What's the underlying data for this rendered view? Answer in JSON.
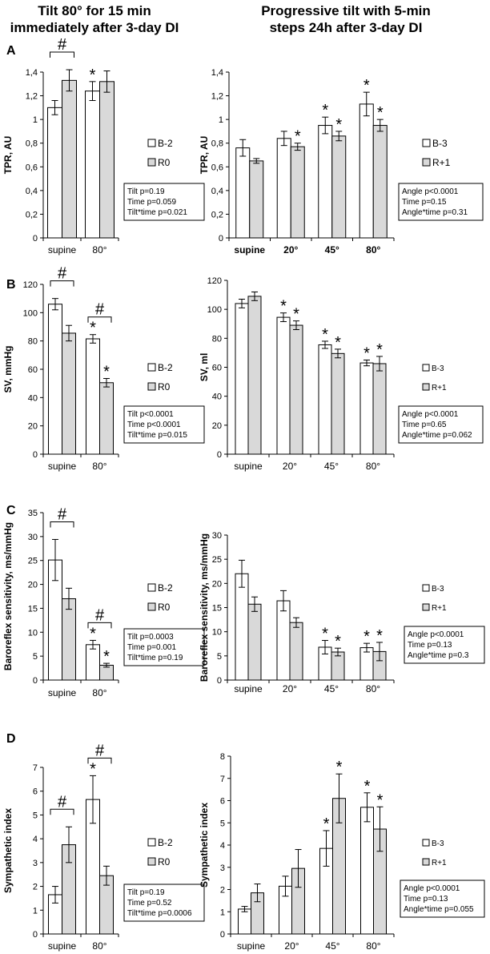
{
  "headers": {
    "left": [
      "Tilt 80° for 15 min",
      "immediately after 3-day DI"
    ],
    "right": [
      "Progressive tilt with 5-min",
      "steps 24h after 3-day DI"
    ]
  },
  "colors": {
    "series1": "#ffffff",
    "series2": "#d9d9d9",
    "stroke": "#000000"
  },
  "chart_data": [
    {
      "id": "A-left",
      "panel": "A",
      "type": "bar",
      "categories": [
        "supine",
        "80°"
      ],
      "ylabel": "TPR, AU",
      "ylim": [
        0,
        1.4
      ],
      "yticks": [
        "0",
        "0,2",
        "0,4",
        "0,6",
        "0,8",
        "1",
        "1,2",
        "1,4"
      ],
      "series": [
        {
          "name": "B-2",
          "values": [
            1.1,
            1.24
          ],
          "errors": [
            0.06,
            0.08
          ]
        },
        {
          "name": "R0",
          "values": [
            1.33,
            1.32
          ],
          "errors": [
            0.09,
            0.09
          ]
        }
      ],
      "stars": [
        {
          "cat": 1,
          "s": 0
        }
      ],
      "hashes": [
        {
          "cat": 0
        }
      ],
      "stats": [
        "Tilt p=0.19",
        "Time p=0.059",
        "Tilt*time p=0.021"
      ]
    },
    {
      "id": "A-right",
      "panel": "A",
      "type": "bar",
      "categories": [
        "supine",
        "20°",
        "45°",
        "80°"
      ],
      "ylabel": "TPR, AU",
      "ylim": [
        0,
        1.4
      ],
      "yticks": [
        "0",
        "0,2",
        "0,4",
        "0,6",
        "0,8",
        "1",
        "1,2",
        "1,4"
      ],
      "series": [
        {
          "name": "B-3",
          "values": [
            0.76,
            0.84,
            0.95,
            1.13
          ],
          "errors": [
            0.07,
            0.06,
            0.07,
            0.1
          ]
        },
        {
          "name": "R+1",
          "values": [
            0.65,
            0.77,
            0.86,
            0.95
          ],
          "errors": [
            0.02,
            0.03,
            0.04,
            0.05
          ]
        }
      ],
      "stars": [
        {
          "cat": 1,
          "s": 1
        },
        {
          "cat": 2,
          "s": 0
        },
        {
          "cat": 2,
          "s": 1
        },
        {
          "cat": 3,
          "s": 0
        },
        {
          "cat": 3,
          "s": 1
        }
      ],
      "hashes": [],
      "stats": [
        "Angle p<0.0001",
        "Time p=0.15",
        "Angle*time p=0.31"
      ]
    },
    {
      "id": "B-left",
      "panel": "B",
      "type": "bar",
      "categories": [
        "supine",
        "80°"
      ],
      "ylabel": "SV, mmHg",
      "ylim": [
        0,
        120
      ],
      "yticks": [
        "0",
        "20",
        "40",
        "60",
        "80",
        "100",
        "120"
      ],
      "series": [
        {
          "name": "B-2",
          "values": [
            106,
            81.5
          ],
          "errors": [
            4,
            3
          ]
        },
        {
          "name": "R0",
          "values": [
            85.5,
            50.5
          ],
          "errors": [
            5.5,
            3
          ]
        }
      ],
      "stars": [
        {
          "cat": 1,
          "s": 0
        },
        {
          "cat": 1,
          "s": 1
        }
      ],
      "hashes": [
        {
          "cat": 0
        },
        {
          "cat": 1
        }
      ],
      "stats": [
        "Tilt p<0.0001",
        "Time p<0.0001",
        "Tilt*time p=0.015"
      ]
    },
    {
      "id": "B-right",
      "panel": "B",
      "type": "bar",
      "categories": [
        "supine",
        "20°",
        "45°",
        "80°"
      ],
      "ylabel": "SV, ml",
      "ylim": [
        0,
        120
      ],
      "yticks": [
        "0",
        "20",
        "40",
        "60",
        "80",
        "100",
        "120"
      ],
      "series": [
        {
          "name": "B-3",
          "values": [
            104,
            94.5,
            75.5,
            63
          ],
          "errors": [
            3,
            3,
            2.5,
            2
          ]
        },
        {
          "name": "R+1",
          "values": [
            109,
            89,
            69.5,
            62.5
          ],
          "errors": [
            3,
            3,
            3,
            5
          ]
        }
      ],
      "stars": [
        {
          "cat": 1,
          "s": 0
        },
        {
          "cat": 1,
          "s": 1
        },
        {
          "cat": 2,
          "s": 0
        },
        {
          "cat": 2,
          "s": 1
        },
        {
          "cat": 3,
          "s": 0
        },
        {
          "cat": 3,
          "s": 1
        }
      ],
      "hashes": [],
      "stats": [
        "Angle p<0.0001",
        "Time p=0.65",
        "Angle*time p=0.062"
      ]
    },
    {
      "id": "C-left",
      "panel": "C",
      "type": "bar",
      "categories": [
        "supine",
        "80°"
      ],
      "ylabel": "Baroreflex sensitivity, ms/mmHg",
      "ylim": [
        0,
        35
      ],
      "yticks": [
        "0",
        "5",
        "10",
        "15",
        "20",
        "25",
        "30",
        "35"
      ],
      "series": [
        {
          "name": "B-2",
          "values": [
            25.1,
            7.4
          ],
          "errors": [
            4.3,
            0.9
          ]
        },
        {
          "name": "R0",
          "values": [
            17.0,
            3.1
          ],
          "errors": [
            2.2,
            0.4
          ]
        }
      ],
      "stars": [
        {
          "cat": 1,
          "s": 0
        },
        {
          "cat": 1,
          "s": 1
        }
      ],
      "hashes": [
        {
          "cat": 0
        },
        {
          "cat": 1
        }
      ],
      "stats": [
        "Tilt p=0.0003",
        "Time p=0.001",
        "Tilt*time p=0.19"
      ]
    },
    {
      "id": "C-right",
      "panel": "C",
      "type": "bar",
      "categories": [
        "supine",
        "20°",
        "45°",
        "80°"
      ],
      "ylabel": "Baroreflex sensitivity, ms/mmHg",
      "ylim": [
        0,
        30
      ],
      "yticks": [
        "0",
        "5",
        "10",
        "15",
        "20",
        "25",
        "30"
      ],
      "series": [
        {
          "name": "B-3",
          "values": [
            22.0,
            16.4,
            6.8,
            6.7
          ],
          "errors": [
            2.8,
            2.1,
            1.4,
            0.9
          ]
        },
        {
          "name": "R+1",
          "values": [
            15.7,
            11.9,
            5.8,
            5.9
          ],
          "errors": [
            1.5,
            1.0,
            0.8,
            1.9
          ]
        }
      ],
      "stars": [
        {
          "cat": 2,
          "s": 0
        },
        {
          "cat": 2,
          "s": 1
        },
        {
          "cat": 3,
          "s": 0
        },
        {
          "cat": 3,
          "s": 1
        }
      ],
      "hashes": [],
      "stats": [
        "Angle p<0.0001",
        "Time p=0.13",
        "Angle*time p=0.3"
      ]
    },
    {
      "id": "D-left",
      "panel": "D",
      "type": "bar",
      "categories": [
        "supine",
        "80°"
      ],
      "ylabel": "Sympathetic index",
      "ylim": [
        0,
        7
      ],
      "yticks": [
        "0",
        "1",
        "2",
        "3",
        "4",
        "5",
        "6",
        "7"
      ],
      "series": [
        {
          "name": "B-2",
          "values": [
            1.65,
            5.65
          ],
          "errors": [
            0.35,
            1.0
          ]
        },
        {
          "name": "R0",
          "values": [
            3.75,
            2.45
          ],
          "errors": [
            0.75,
            0.4
          ]
        }
      ],
      "stars": [
        {
          "cat": 1,
          "s": 0
        }
      ],
      "hashes": [
        {
          "cat": 0
        },
        {
          "cat": 1
        }
      ],
      "stats": [
        "Tilt p=0.19",
        "Time p=0.52",
        "Tilt*time p=0.0006"
      ]
    },
    {
      "id": "D-right",
      "panel": "D",
      "type": "bar",
      "categories": [
        "supine",
        "20°",
        "45°",
        "80°"
      ],
      "ylabel": "Sympathetic index",
      "ylim": [
        0,
        8
      ],
      "yticks": [
        "0",
        "1",
        "2",
        "3",
        "4",
        "5",
        "6",
        "7",
        "8"
      ],
      "series": [
        {
          "name": "B-3",
          "values": [
            1.12,
            2.15,
            3.85,
            5.7
          ],
          "errors": [
            0.12,
            0.45,
            0.8,
            0.65
          ]
        },
        {
          "name": "R+1",
          "values": [
            1.85,
            2.95,
            6.1,
            4.72
          ],
          "errors": [
            0.4,
            0.85,
            1.1,
            1.0
          ]
        }
      ],
      "stars": [
        {
          "cat": 2,
          "s": 0
        },
        {
          "cat": 2,
          "s": 1
        },
        {
          "cat": 3,
          "s": 0
        },
        {
          "cat": 3,
          "s": 1
        }
      ],
      "hashes": [],
      "stats": [
        "Angle p<0.0001",
        "Time p=0.13",
        "Angle*time p=0.055"
      ]
    }
  ]
}
